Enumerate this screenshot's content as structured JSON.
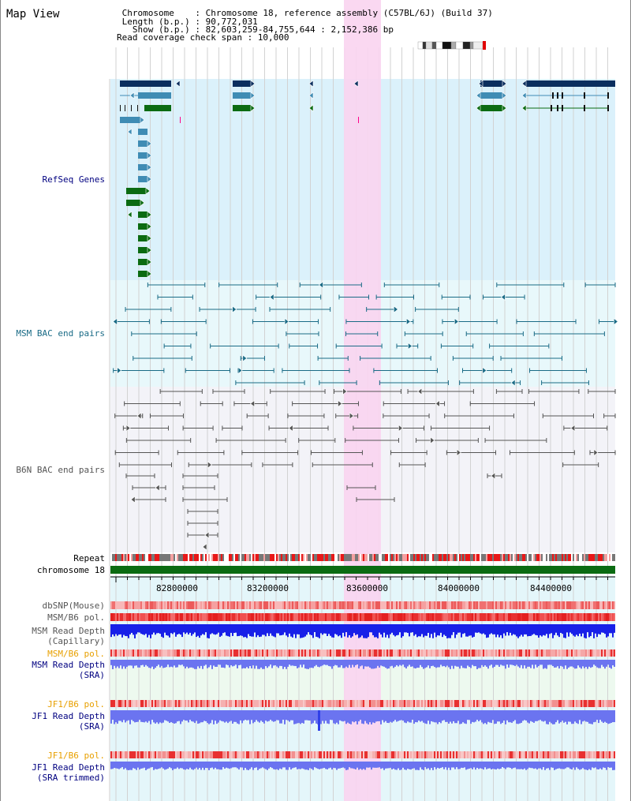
{
  "title": "Map View",
  "info": {
    "chromosome_line": " Chromosome    : Chromosome 18, reference assembly (C57BL/6J) (Build 37)",
    "length_line": " Length (b.p.) : 90,772,031",
    "show_line": "   Show (b.p.) : 82,603,259-84,755,644 : 2,152,386 bp",
    "coverage_line": "Read coverage check span : 10,000"
  },
  "tracks": {
    "refseq": "RefSeq Genes",
    "msm_bac": "MSM BAC end pairs",
    "b6n_bac": "B6N BAC end pairs",
    "repeat": "Repeat",
    "chromosome": "chromosome 18",
    "dbsnp": "dbSNP(Mouse)",
    "msm_pol_1": "MSM/B6 pol.",
    "msm_depth_cap_1": "MSM Read Depth",
    "msm_depth_cap_2": "(Capillary)",
    "msm_pol_2": "MSM/B6 pol.",
    "msm_depth_sra_1": "MSM Read Depth",
    "msm_depth_sra_2": "(SRA)",
    "jf1_pol_1": "JF1/B6 pol.",
    "jf1_depth_sra_1": "JF1 Read Depth",
    "jf1_depth_sra_2": "(SRA)",
    "jf1_pol_2": "JF1/B6 pol.",
    "jf1_depth_trim_1": "JF1 Read Depth",
    "jf1_depth_trim_2": "(SRA trimmed)"
  },
  "axis": {
    "ticks": [
      "82800000",
      "83200000",
      "83600000",
      "84000000",
      "84400000"
    ]
  },
  "colors": {
    "refseq_bg": "#dbf1fb",
    "msm_bg": "#e8f8fb",
    "b6n_bg": "#f3f3f8",
    "highlight": "#f9d4ef",
    "gene_navy": "#0b2e5e",
    "gene_mid": "#3f8cb4",
    "gene_green": "#0b6b12",
    "msm_line": "#1a6b86",
    "b6n_line": "#555555",
    "depth_blue": "#1820e8",
    "depth_light": "#6b74f0",
    "label_blue": "#000080",
    "label_teal": "#1a6b86",
    "label_grey": "#555555",
    "label_orange": "#e8a000"
  }
}
